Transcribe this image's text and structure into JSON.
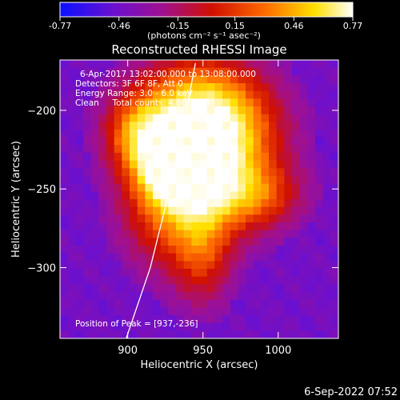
{
  "colorbar": {
    "ticks": [
      "-0.77",
      "-0.46",
      "-0.15",
      "0.15",
      "0.46",
      "0.77"
    ],
    "tick_values": [
      -0.77,
      -0.46,
      -0.15,
      0.15,
      0.46,
      0.77
    ],
    "units_label": "(photons cm⁻² s⁻¹ asec⁻²)",
    "range": [
      -0.77,
      0.77
    ],
    "colors": [
      "#0a10ff",
      "#6a10d0",
      "#a01090",
      "#d01000",
      "#ff6a00",
      "#ffe000",
      "#ffffff"
    ]
  },
  "chart_data": {
    "type": "heatmap",
    "title": "Reconstructed RHESSI Image",
    "xlabel": "Heliocentric X (arcsec)",
    "ylabel": "Heliocentric Y (arcsec)",
    "xlim": [
      855,
      1040
    ],
    "ylim": [
      -345,
      -168
    ],
    "x_ticks": [
      900,
      950,
      1000
    ],
    "y_ticks": [
      -200,
      -250,
      -300
    ],
    "peak": {
      "x": 937,
      "y": -236
    },
    "limb_curve": [
      [
        899,
        -345
      ],
      [
        915,
        -300
      ],
      [
        928,
        -250
      ],
      [
        939,
        -200
      ],
      [
        945,
        -170
      ]
    ],
    "annotations": [
      "6-Apr-2017 13:02:00.000 to 13:08:00.000",
      "Detectors: 3F 6F 8F, Att 0",
      "Energy Range: 3.0 - 6.0 keV",
      "Clean     Total counts: 4.60E+04"
    ],
    "peak_label": "Position of Peak = [937,-236]"
  },
  "footer_date": "6-Sep-2022 07:52"
}
